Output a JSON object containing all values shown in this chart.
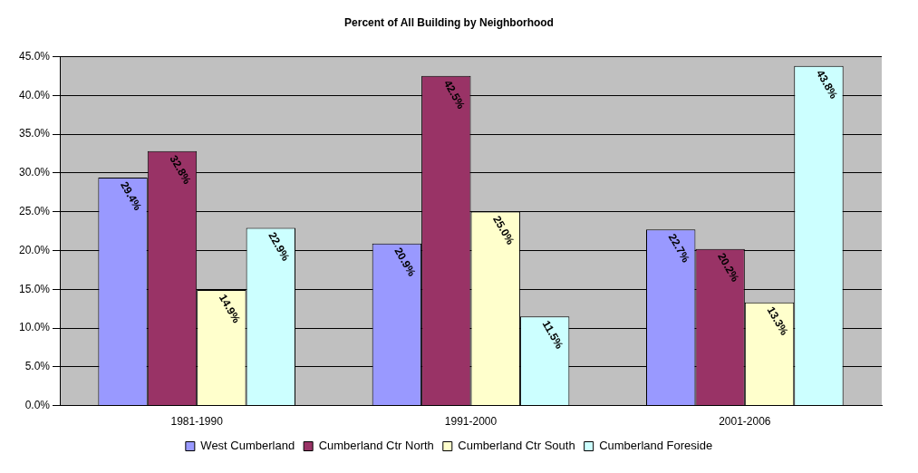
{
  "chart_data": {
    "type": "bar",
    "title": "Percent of All Building by Neighborhood",
    "categories": [
      "1981-1990",
      "1991-2000",
      "2001-2006"
    ],
    "series": [
      {
        "name": "West Cumberland",
        "color": "#9999ff",
        "values": [
          29.4,
          20.9,
          22.7
        ],
        "value_labels": [
          "29.4%",
          "20.9%",
          "22.7%"
        ]
      },
      {
        "name": "Cumberland Ctr North",
        "color": "#993366",
        "values": [
          32.8,
          42.5,
          20.2
        ],
        "value_labels": [
          "32.8%",
          "42.5%",
          "20.2%"
        ]
      },
      {
        "name": "Cumberland Ctr South",
        "color": "#ffffcc",
        "values": [
          14.9,
          25.0,
          13.3
        ],
        "value_labels": [
          "14.9%",
          "25.0%",
          "13.3%"
        ]
      },
      {
        "name": "Cumberland Foreside",
        "color": "#ccffff",
        "values": [
          22.9,
          11.5,
          43.8
        ],
        "value_labels": [
          "22.9%",
          "11.5%",
          "43.8%"
        ]
      }
    ],
    "ylim": [
      0,
      45
    ],
    "yticks": [
      {
        "value": 0,
        "label": "0.0%"
      },
      {
        "value": 5,
        "label": "5.0%"
      },
      {
        "value": 10,
        "label": "10.0%"
      },
      {
        "value": 15,
        "label": "15.0%"
      },
      {
        "value": 20,
        "label": "20.0%"
      },
      {
        "value": 25,
        "label": "25.0%"
      },
      {
        "value": 30,
        "label": "30.0%"
      },
      {
        "value": 35,
        "label": "35.0%"
      },
      {
        "value": 40,
        "label": "40.0%"
      },
      {
        "value": 45,
        "label": "45.0%"
      }
    ],
    "grid": "y",
    "legend": "bottom"
  }
}
